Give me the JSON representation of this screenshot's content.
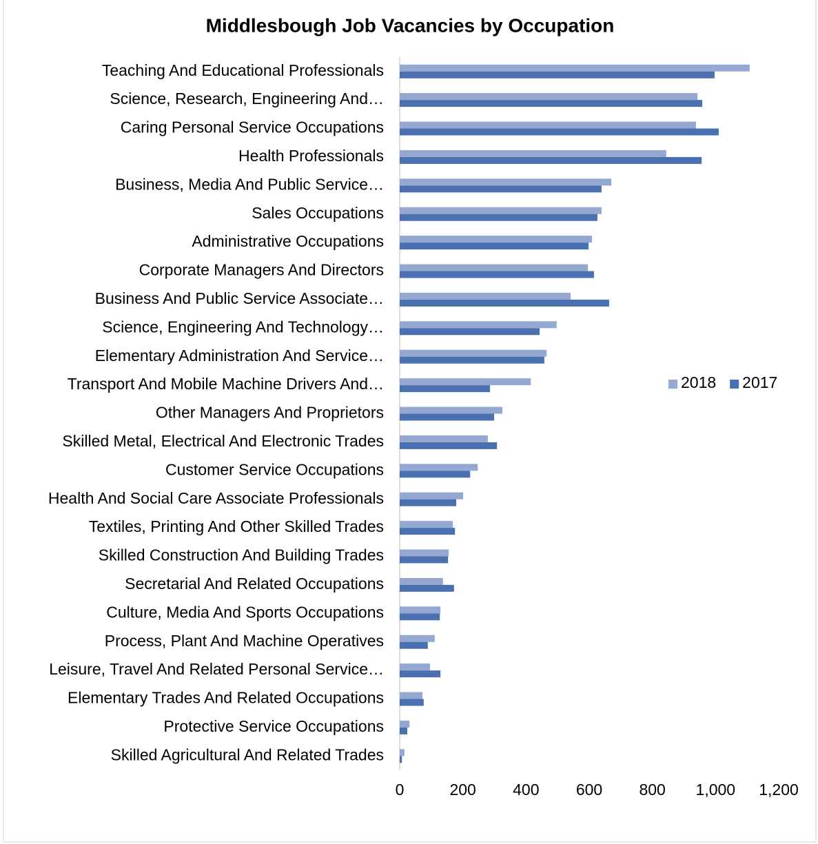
{
  "chart_data": {
    "type": "hbar",
    "title": "Middlesbough Job Vacancies by Occupation",
    "categories": [
      "Teaching And Educational Professionals",
      "Science, Research, Engineering And…",
      "Caring Personal Service Occupations",
      "Health Professionals",
      "Business, Media And Public Service…",
      "Sales Occupations",
      "Administrative Occupations",
      "Corporate Managers And Directors",
      "Business And Public Service Associate…",
      "Science, Engineering And Technology…",
      "Elementary Administration And Service…",
      "Transport And Mobile Machine Drivers And…",
      "Other Managers And Proprietors",
      "Skilled Metal, Electrical And Electronic Trades",
      "Customer Service Occupations",
      "Health And Social Care Associate Professionals",
      "Textiles, Printing And Other Skilled Trades",
      "Skilled Construction And Building Trades",
      "Secretarial And Related Occupations",
      "Culture, Media And Sports Occupations",
      "Process, Plant And Machine Operatives",
      "Leisure, Travel And Related Personal Service…",
      "Elementary Trades And Related Occupations",
      "Protective Service Occupations",
      "Skilled Agricultural And Related Trades"
    ],
    "series": [
      {
        "name": "2018",
        "color": "#94a8d2",
        "values": [
          1108,
          943,
          938,
          844,
          670,
          639,
          609,
          596,
          541,
          497,
          465,
          415,
          325,
          279,
          247,
          201,
          168,
          155,
          137,
          129,
          111,
          96,
          72,
          31,
          15
        ]
      },
      {
        "name": "2017",
        "color": "#4a70b0",
        "values": [
          997,
          958,
          1010,
          956,
          639,
          626,
          598,
          615,
          663,
          443,
          458,
          286,
          299,
          308,
          223,
          179,
          175,
          153,
          172,
          127,
          89,
          129,
          76,
          24,
          7
        ]
      }
    ],
    "xlim": [
      0,
      1200
    ],
    "xticks": [
      0,
      200,
      400,
      600,
      800,
      {
        "value": 1000,
        "label": "1,000"
      },
      {
        "value": 1200,
        "label": "1,200"
      }
    ],
    "legend": "right"
  }
}
